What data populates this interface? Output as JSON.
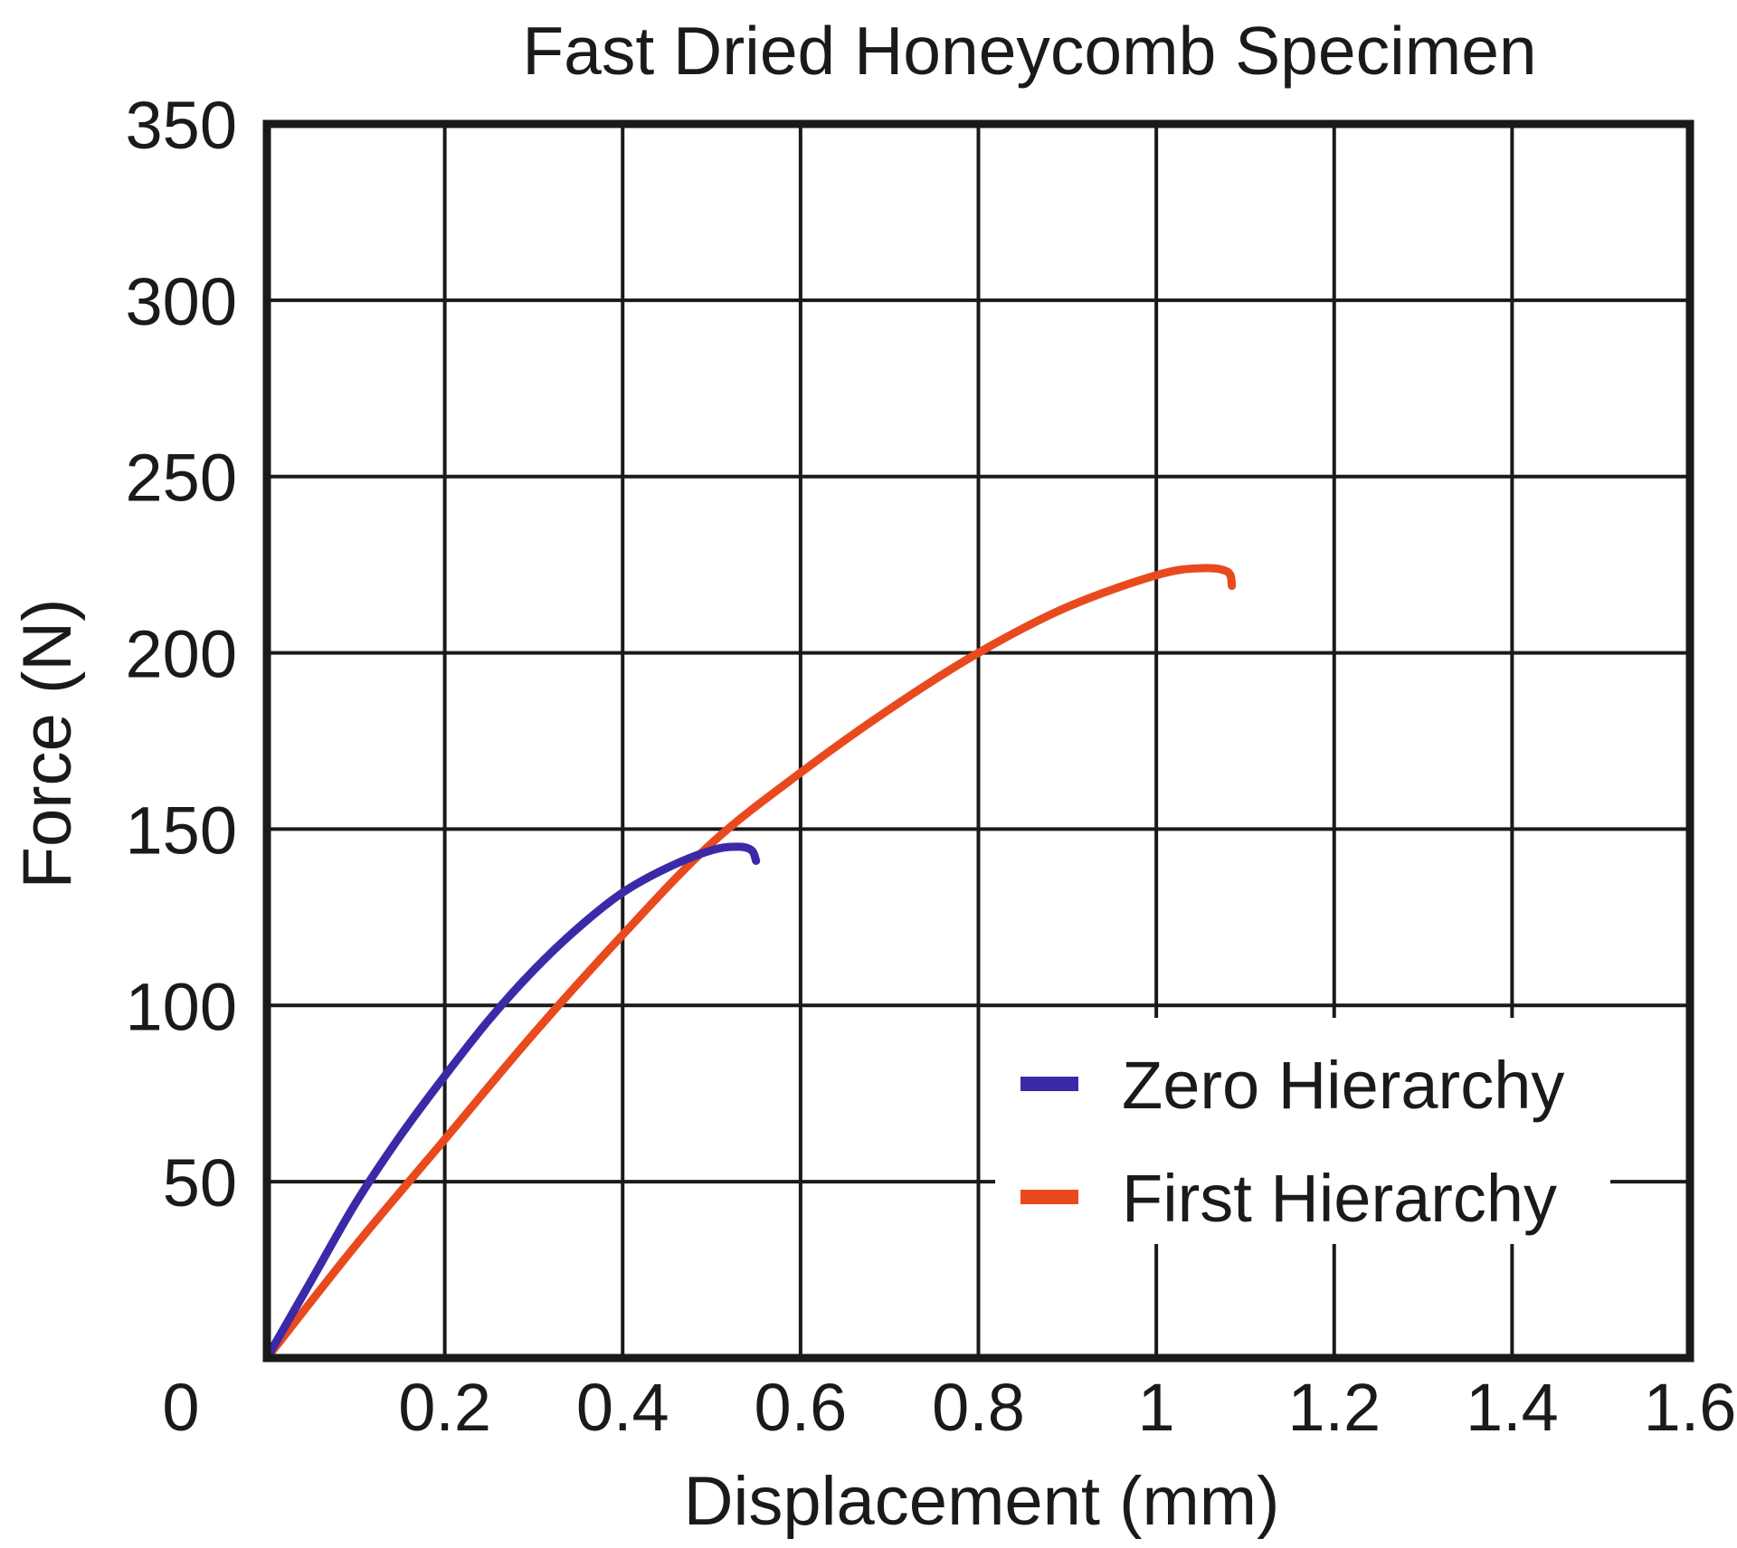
{
  "chart_data": {
    "type": "line",
    "title": "Fast Dried Honeycomb Specimen",
    "xlabel": "Displacement (mm)",
    "ylabel": "Force (N)",
    "xlim": [
      0,
      1.6
    ],
    "ylim": [
      0,
      350
    ],
    "x_ticks": [
      0,
      0.2,
      0.4,
      0.6,
      0.8,
      1.0,
      1.2,
      1.4,
      1.6
    ],
    "x_tick_labels": [
      "0",
      "0.2",
      "0.4",
      "0.6",
      "0.8",
      "1",
      "1.2",
      "1.4",
      "1.6"
    ],
    "y_ticks": [
      50,
      100,
      150,
      200,
      250,
      300,
      350
    ],
    "y_tick_labels": [
      "50",
      "100",
      "150",
      "200",
      "250",
      "300",
      "350"
    ],
    "grid": true,
    "legend_position": "bottom-right",
    "series": [
      {
        "name": "Zero Hierarchy",
        "color": "#3a2aa8",
        "x": [
          0,
          0.05,
          0.1,
          0.15,
          0.2,
          0.25,
          0.3,
          0.35,
          0.4,
          0.45,
          0.5,
          0.53,
          0.545,
          0.55
        ],
        "y": [
          0,
          22,
          44,
          63,
          80,
          96,
          110,
          122,
          132,
          139,
          144,
          145,
          144,
          141
        ]
      },
      {
        "name": "First Hierarchy",
        "color": "#e84a1e",
        "x": [
          0,
          0.1,
          0.2,
          0.3,
          0.4,
          0.5,
          0.6,
          0.7,
          0.8,
          0.9,
          1.0,
          1.05,
          1.08,
          1.085
        ],
        "y": [
          0,
          32,
          62,
          92,
          120,
          146,
          166,
          184,
          200,
          213,
          222,
          224,
          223,
          219
        ]
      }
    ]
  }
}
